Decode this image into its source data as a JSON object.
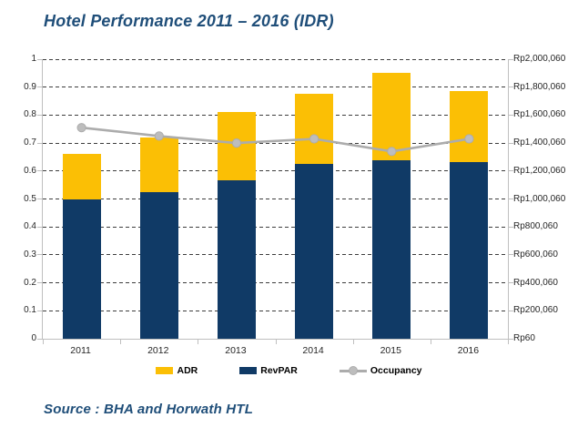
{
  "header": {
    "title": "Hotel Performance 2011 – 2016 (IDR)"
  },
  "footer": {
    "source": "Source : BHA and Horwath HTL"
  },
  "colors": {
    "adr": "#FBBF05",
    "revpar": "#103A66",
    "occupancy_line": "#ACACAC",
    "occupancy_marker": "#BDBDBD",
    "title_text": "#1F4E79",
    "axis_text": "#262626",
    "gridline": "#3D3D3D",
    "axis_line": "#BFBFBF"
  },
  "chart_data": {
    "type": "combo-bar-line",
    "title": "Hotel Performance 2011 – 2016 (IDR)",
    "grid": "dashed-horizontal",
    "categories": [
      "2011",
      "2012",
      "2013",
      "2014",
      "2015",
      "2016"
    ],
    "series": [
      {
        "name": "ADR",
        "type": "bar",
        "axis": "right",
        "color_key": "adr",
        "values_frac": [
          0.66,
          0.72,
          0.81,
          0.875,
          0.95,
          0.885
        ],
        "values_idr_approx": [
          1320060,
          1440060,
          1620060,
          1750060,
          1900060,
          1770060
        ]
      },
      {
        "name": "RevPAR",
        "type": "bar",
        "axis": "right",
        "color_key": "revpar",
        "values_frac": [
          0.5,
          0.525,
          0.567,
          0.627,
          0.637,
          0.632
        ],
        "values_idr_approx": [
          1000060,
          1050060,
          1134060,
          1254060,
          1274060,
          1264060
        ]
      },
      {
        "name": "Occupancy",
        "type": "line",
        "axis": "left",
        "color_key": "occupancy_line",
        "values_frac": [
          0.755,
          0.725,
          0.7,
          0.715,
          0.67,
          0.715
        ]
      }
    ],
    "left_axis": {
      "min": 0,
      "max": 1,
      "ticks": [
        "1",
        "0.9",
        "0.8",
        "0.7",
        "0.6",
        "0.5",
        "0.4",
        "0.3",
        "0.2",
        "0.1",
        "0"
      ]
    },
    "right_axis": {
      "ticks": [
        "Rp2,000,060",
        "Rp1,800,060",
        "Rp1,600,060",
        "Rp1,400,060",
        "Rp1,200,060",
        "Rp1,000,060",
        "Rp800,060",
        "Rp600,060",
        "Rp400,060",
        "Rp200,060",
        "Rp60"
      ]
    },
    "legend": [
      {
        "label": "ADR",
        "swatch": "bar",
        "color_key": "adr"
      },
      {
        "label": "RevPAR",
        "swatch": "bar",
        "color_key": "revpar"
      },
      {
        "label": "Occupancy",
        "swatch": "line",
        "color_key": "occupancy_line"
      }
    ]
  }
}
